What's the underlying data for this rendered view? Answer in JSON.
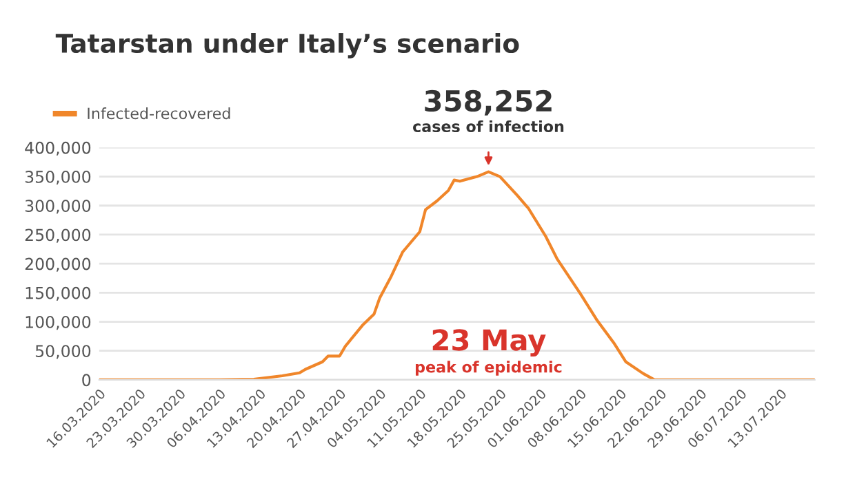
{
  "chart_data": {
    "type": "line",
    "title": "Tatarstan under Italy’s scenario",
    "x": [
      "2020-03-16",
      "2020-04-06",
      "2020-04-12",
      "2020-04-17",
      "2020-04-20",
      "2020-04-21",
      "2020-04-24",
      "2020-04-25",
      "2020-04-27",
      "2020-04-28",
      "2020-05-01",
      "2020-05-03",
      "2020-05-04",
      "2020-05-06",
      "2020-05-08",
      "2020-05-11",
      "2020-05-12",
      "2020-05-14",
      "2020-05-16",
      "2020-05-17",
      "2020-05-18",
      "2020-05-21",
      "2020-05-23",
      "2020-05-25",
      "2020-05-28",
      "2020-05-30",
      "2020-06-02",
      "2020-06-04",
      "2020-06-08",
      "2020-06-11",
      "2020-06-14",
      "2020-06-16",
      "2020-06-19",
      "2020-06-21",
      "2020-07-19"
    ],
    "series": [
      {
        "name": "Infected-recovered",
        "color": "#f0862a",
        "values": [
          0,
          0,
          1000,
          7000,
          12000,
          18000,
          31000,
          41000,
          41000,
          58000,
          94000,
          113000,
          141000,
          178000,
          220000,
          255000,
          293000,
          308000,
          326000,
          344000,
          342000,
          350000,
          358252,
          350000,
          318000,
          295000,
          247000,
          208000,
          149000,
          102000,
          62000,
          31000,
          11000,
          0,
          0
        ]
      }
    ],
    "xlim": [
      "2020-03-16",
      "2020-07-19"
    ],
    "xticks": [
      {
        "value": "2020-03-16",
        "label": "16.03.2020"
      },
      {
        "value": "2020-03-23",
        "label": "23.03.2020"
      },
      {
        "value": "2020-03-30",
        "label": "30.03.2020"
      },
      {
        "value": "2020-04-06",
        "label": "06.04.2020"
      },
      {
        "value": "2020-04-13",
        "label": "13.04.2020"
      },
      {
        "value": "2020-04-20",
        "label": "20.04.2020"
      },
      {
        "value": "2020-04-27",
        "label": "27.04.2020"
      },
      {
        "value": "2020-05-04",
        "label": "04.05.2020"
      },
      {
        "value": "2020-05-11",
        "label": "11.05.2020"
      },
      {
        "value": "2020-05-18",
        "label": "18.05.2020"
      },
      {
        "value": "2020-05-25",
        "label": "25.05.2020"
      },
      {
        "value": "2020-06-01",
        "label": "01.06.2020"
      },
      {
        "value": "2020-06-08",
        "label": "08.06.2020"
      },
      {
        "value": "2020-06-15",
        "label": "15.06.2020"
      },
      {
        "value": "2020-06-22",
        "label": "22.06.2020"
      },
      {
        "value": "2020-06-29",
        "label": "29.06.2020"
      },
      {
        "value": "2020-07-06",
        "label": "06.07.2020"
      },
      {
        "value": "2020-07-13",
        "label": "13.07.2020"
      }
    ],
    "ylim": [
      0,
      400000
    ],
    "yticks": [
      {
        "value": 0,
        "label": "0"
      },
      {
        "value": 50000,
        "label": "50,000"
      },
      {
        "value": 100000,
        "label": "100,000"
      },
      {
        "value": 150000,
        "label": "150,000"
      },
      {
        "value": 200000,
        "label": "200,000"
      },
      {
        "value": 250000,
        "label": "250,000"
      },
      {
        "value": 300000,
        "label": "300,000"
      },
      {
        "value": 350000,
        "label": "350,000"
      },
      {
        "value": 400000,
        "label": "400,000"
      }
    ],
    "grid": "y",
    "legend": "top left",
    "marker": "none",
    "line_style": "solid",
    "annotations": [
      {
        "text": "358,252",
        "x": "2020-05-23",
        "y": 358252
      },
      "cases of infection",
      "23 May",
      "peak of epidemic"
    ]
  }
}
